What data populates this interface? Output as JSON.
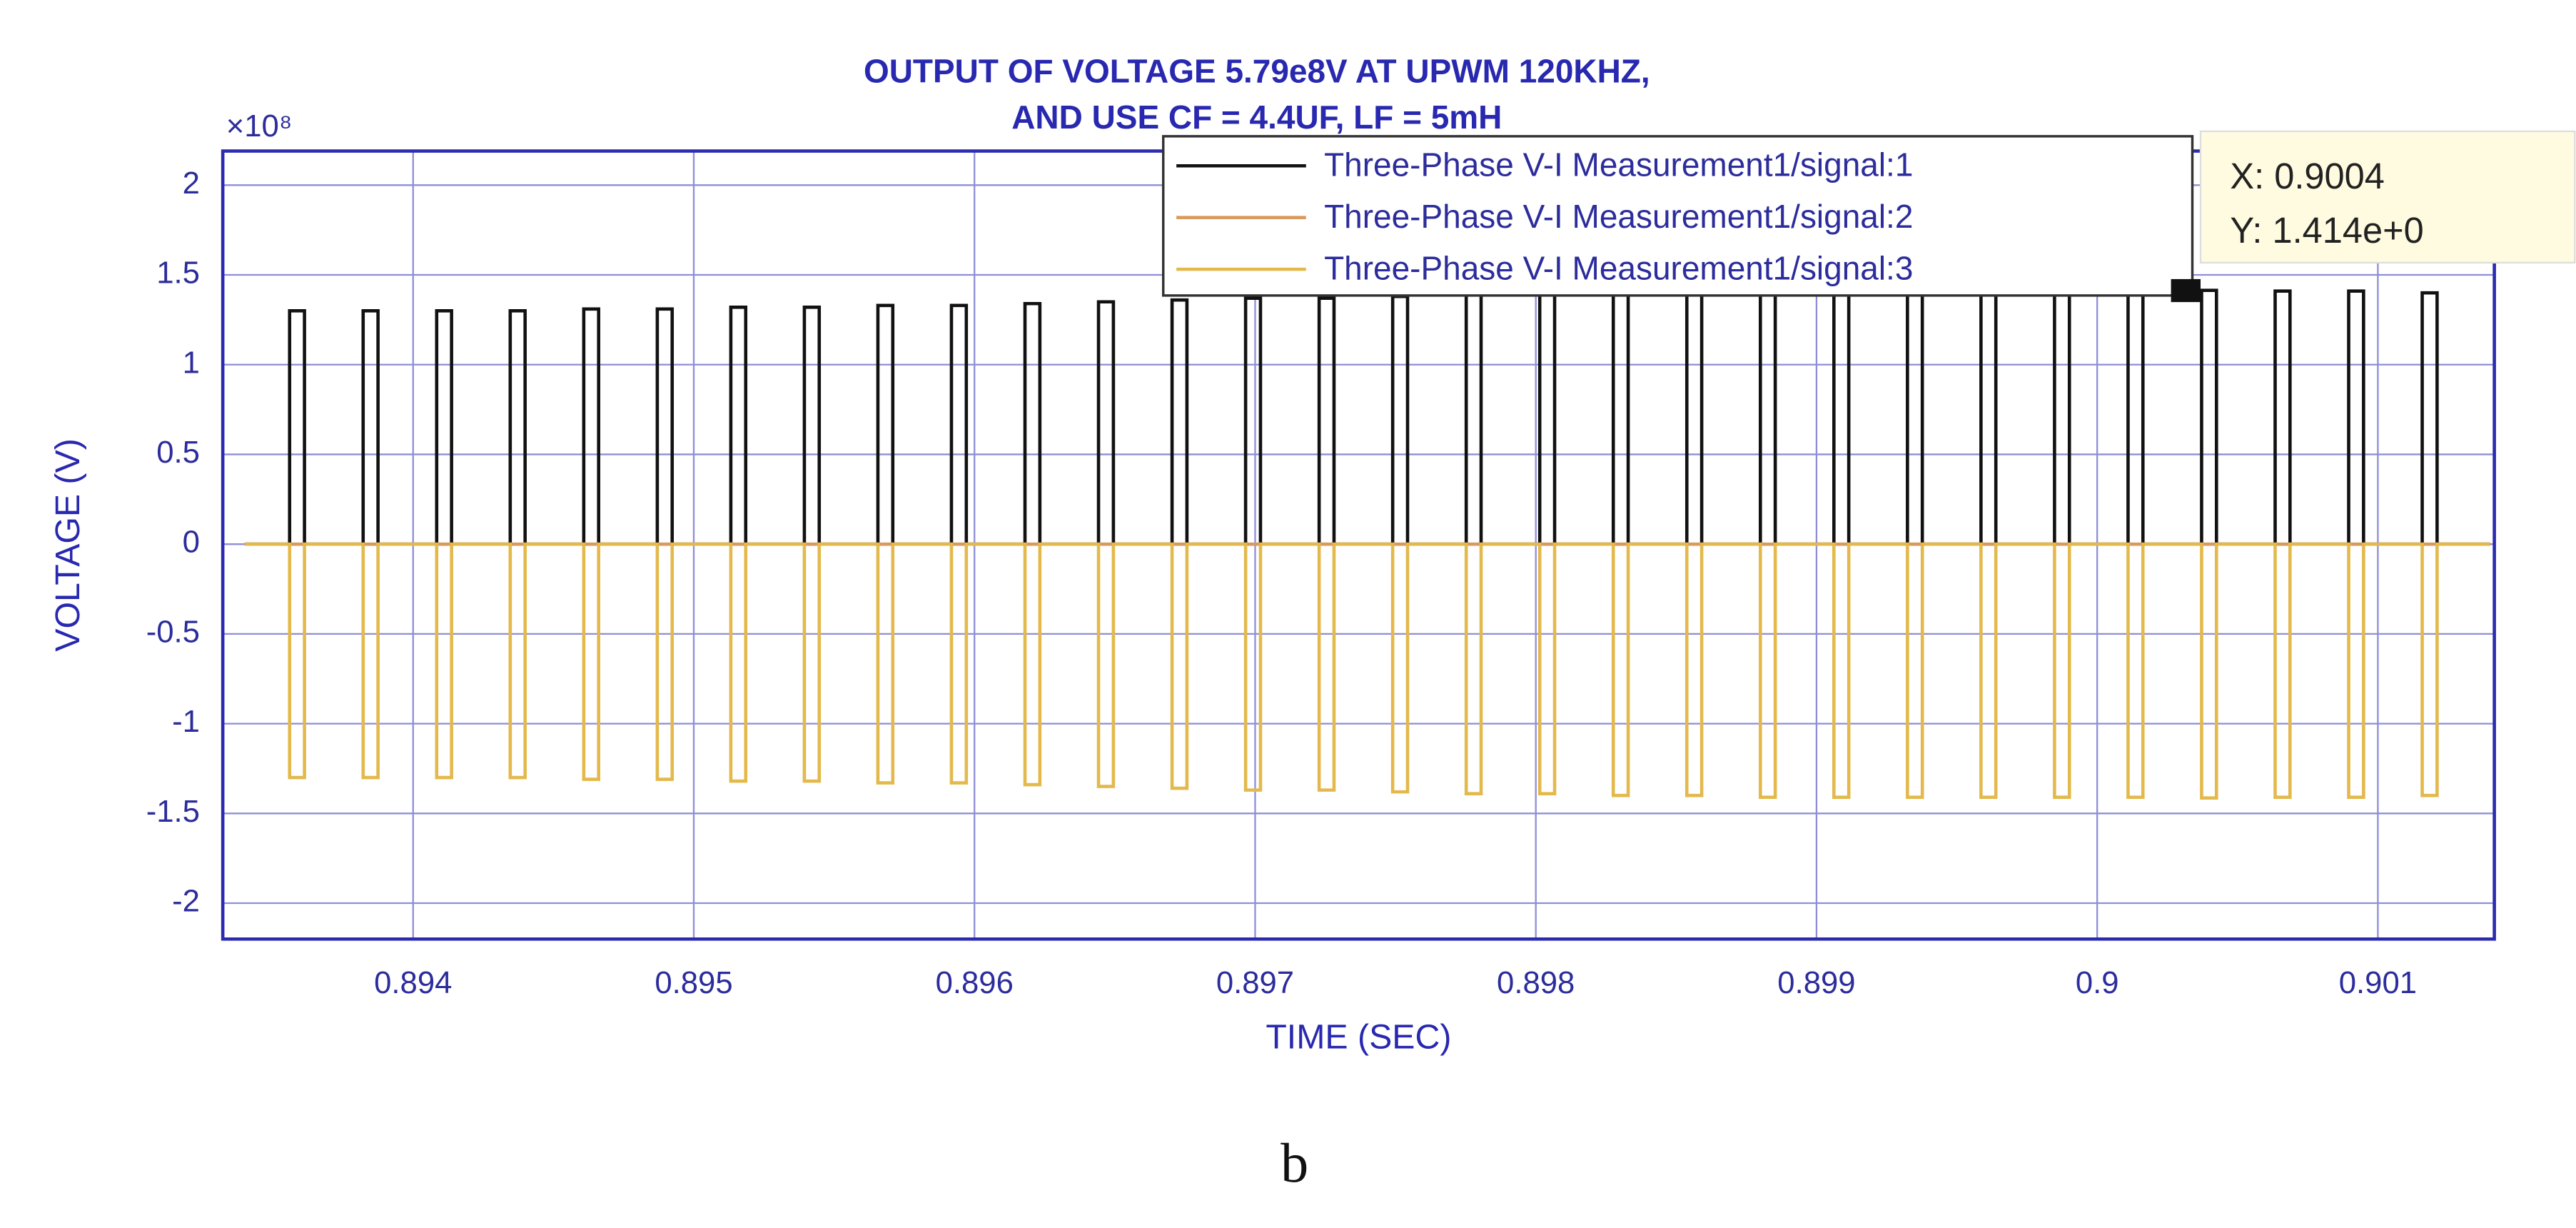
{
  "chart_data": {
    "type": "line",
    "step": "post",
    "title": [
      "OUTPUT OF VOLTAGE 5.79e8V AT UPWM 120KHZ,",
      "AND USE CF = 4.4UF, LF = 5mH"
    ],
    "x_label": "TIME (SEC)",
    "y_label": "VOLTAGE (V)",
    "y_multiplier": "×10⁸",
    "x": [
      0.8934,
      0.89356,
      0.893613,
      0.893822,
      0.893875,
      0.894084,
      0.894137,
      0.894346,
      0.894399,
      0.894608,
      0.894661,
      0.89487,
      0.894923,
      0.895132,
      0.895185,
      0.895394,
      0.895447,
      0.895656,
      0.895709,
      0.895918,
      0.895971,
      0.89618,
      0.896233,
      0.896442,
      0.896495,
      0.896704,
      0.896757,
      0.896966,
      0.897019,
      0.897228,
      0.897281,
      0.89749,
      0.897543,
      0.897752,
      0.897805,
      0.898014,
      0.898067,
      0.898276,
      0.898329,
      0.898538,
      0.898591,
      0.8988,
      0.898853,
      0.899062,
      0.899115,
      0.899324,
      0.899377,
      0.899586,
      0.899639,
      0.899848,
      0.899901,
      0.90011,
      0.900163,
      0.900372,
      0.900425,
      0.900634,
      0.900687,
      0.900896,
      0.900949,
      0.901158,
      0.901211,
      0.9014
    ],
    "series": [
      {
        "name": "Three-Phase V-I Measurement1/signal:1",
        "color": "#111111",
        "values": [
          0,
          1.3,
          0,
          1.3,
          0,
          1.3,
          0,
          1.3,
          0,
          1.31,
          0,
          1.31,
          0,
          1.32,
          0,
          1.32,
          0,
          1.33,
          0,
          1.33,
          0,
          1.34,
          0,
          1.35,
          0,
          1.36,
          0,
          1.37,
          0,
          1.37,
          0,
          1.38,
          0,
          1.39,
          0,
          1.39,
          0,
          1.4,
          0,
          1.4,
          0,
          1.41,
          0,
          1.41,
          0,
          1.41,
          0,
          1.41,
          0,
          1.41,
          0,
          1.41,
          0,
          1.414,
          0,
          1.41,
          0,
          1.41,
          0,
          1.4,
          0,
          0
        ]
      },
      {
        "name": "Three-Phase V-I Measurement1/signal:2",
        "color": "#d99a5e",
        "values": [
          0,
          0,
          0,
          0,
          0,
          0,
          0,
          0,
          0,
          0,
          0,
          0,
          0,
          0,
          0,
          0,
          0,
          0,
          0,
          0,
          0,
          0,
          0,
          0,
          0,
          0,
          0,
          0,
          0,
          0,
          0,
          0,
          0,
          0,
          0,
          0,
          0,
          0,
          0,
          0,
          0,
          0,
          0,
          0,
          0,
          0,
          0,
          0,
          0,
          0,
          0,
          0,
          0,
          0,
          0,
          0,
          0,
          0,
          0,
          0,
          0,
          0
        ]
      },
      {
        "name": "Three-Phase V-I Measurement1/signal:3",
        "color": "#e3b94c",
        "values": [
          0,
          -1.3,
          0,
          -1.3,
          0,
          -1.3,
          0,
          -1.3,
          0,
          -1.31,
          0,
          -1.31,
          0,
          -1.32,
          0,
          -1.32,
          0,
          -1.33,
          0,
          -1.33,
          0,
          -1.34,
          0,
          -1.35,
          0,
          -1.36,
          0,
          -1.37,
          0,
          -1.37,
          0,
          -1.38,
          0,
          -1.39,
          0,
          -1.39,
          0,
          -1.4,
          0,
          -1.4,
          0,
          -1.41,
          0,
          -1.41,
          0,
          -1.41,
          0,
          -1.41,
          0,
          -1.41,
          0,
          -1.41,
          0,
          -1.414,
          0,
          -1.41,
          0,
          -1.41,
          0,
          -1.4,
          0,
          0
        ]
      }
    ],
    "xlim": [
      0.893322,
      0.901415
    ],
    "xticks": [
      0.894,
      0.895,
      0.896,
      0.897,
      0.898,
      0.899,
      0.9,
      0.901
    ],
    "ylim": [
      -2.2,
      2.19
    ],
    "yticks": [
      -2,
      -1.5,
      -1,
      -0.5,
      0,
      0.5,
      1,
      1.5,
      2
    ],
    "grid": true,
    "legend": "top-right",
    "datatip": [
      "X: 0.9004",
      "Y: 1.414e+0"
    ]
  },
  "caption": "b"
}
